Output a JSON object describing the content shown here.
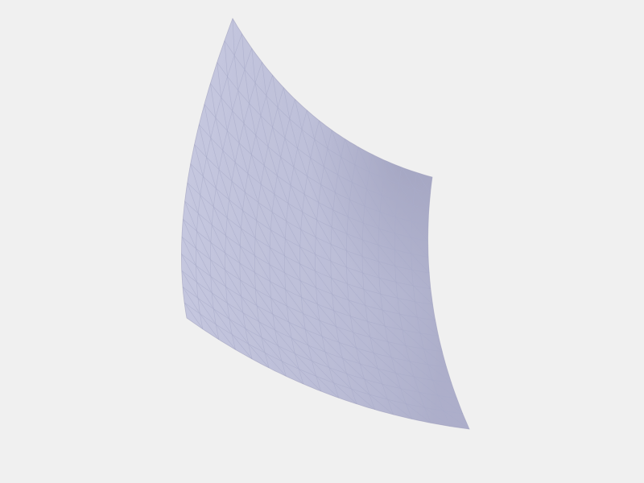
{
  "viewport": {
    "background_color": "#f0f0f0"
  },
  "surface": {
    "shape": "curved-quad-patch",
    "render_style": "shaded-triangulated-mesh",
    "subdivisions_u": 16,
    "subdivisions_v": 16,
    "triangulated": true,
    "colors": {
      "light": "#cbcde3",
      "mid": "#bdbfd8",
      "shadow": "#9e9fbd",
      "wireframe": "#a9acc9"
    }
  }
}
